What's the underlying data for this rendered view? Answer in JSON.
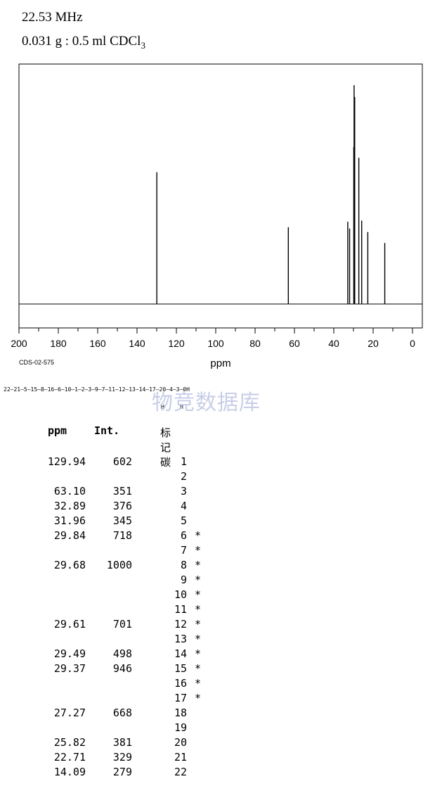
{
  "header": {
    "frequency": "22.53 MHz",
    "sample_main": "0.031 g : 0.5 ml CDCl",
    "sample_sub": "3"
  },
  "spectrum_code": "CDS-02-575",
  "watermark": "物竞数据库",
  "structure_chain": "22—21—5—15—8—16—6—10—1—2—3—9—7—11—12—13—14—17—20—4—3—0H",
  "structure_h_marks": [
    "H",
    "H"
  ],
  "table": {
    "headers": [
      "ppm",
      "Int.",
      "标记碳"
    ],
    "rows": [
      {
        "ppm": "129.94",
        "int": "602",
        "carbons": [
          "1",
          "2"
        ],
        "star": false
      },
      {
        "ppm": "63.10",
        "int": "351",
        "carbons": [
          "3"
        ],
        "star": false
      },
      {
        "ppm": "32.89",
        "int": "376",
        "carbons": [
          "4"
        ],
        "star": false
      },
      {
        "ppm": "31.96",
        "int": "345",
        "carbons": [
          "5"
        ],
        "star": false
      },
      {
        "ppm": "29.84",
        "int": "718",
        "carbons": [
          "6",
          "7"
        ],
        "star": true
      },
      {
        "ppm": "29.68",
        "int": "1000",
        "carbons": [
          "8",
          "9",
          "10",
          "11"
        ],
        "star": true
      },
      {
        "ppm": "29.61",
        "int": "701",
        "carbons": [
          "12",
          "13"
        ],
        "star": true
      },
      {
        "ppm": "29.49",
        "int": "498",
        "carbons": [
          "14"
        ],
        "star": true
      },
      {
        "ppm": "29.37",
        "int": "946",
        "carbons": [
          "15",
          "16",
          "17"
        ],
        "star": true
      },
      {
        "ppm": "27.27",
        "int": "668",
        "carbons": [
          "18",
          "19"
        ],
        "star": false
      },
      {
        "ppm": "25.82",
        "int": "381",
        "carbons": [
          "20"
        ],
        "star": false
      },
      {
        "ppm": "22.71",
        "int": "329",
        "carbons": [
          "21"
        ],
        "star": false
      },
      {
        "ppm": "14.09",
        "int": "279",
        "carbons": [
          "22"
        ],
        "star": false
      }
    ]
  },
  "chart_data": {
    "type": "line",
    "title": "",
    "xlabel": "ppm",
    "ylabel": "",
    "xlim": [
      200,
      0
    ],
    "ylim": [
      0,
      1000
    ],
    "x_ticks": [
      200,
      180,
      160,
      140,
      120,
      100,
      80,
      60,
      40,
      20,
      0
    ],
    "series": [
      {
        "peaks": [
          {
            "ppm": 129.94,
            "intensity": 602
          },
          {
            "ppm": 63.1,
            "intensity": 351
          },
          {
            "ppm": 32.89,
            "intensity": 376
          },
          {
            "ppm": 31.96,
            "intensity": 345
          },
          {
            "ppm": 29.84,
            "intensity": 718
          },
          {
            "ppm": 29.68,
            "intensity": 1000
          },
          {
            "ppm": 29.61,
            "intensity": 701
          },
          {
            "ppm": 29.49,
            "intensity": 498
          },
          {
            "ppm": 29.37,
            "intensity": 946
          },
          {
            "ppm": 27.27,
            "intensity": 668
          },
          {
            "ppm": 25.82,
            "intensity": 381
          },
          {
            "ppm": 22.71,
            "intensity": 329
          },
          {
            "ppm": 14.09,
            "intensity": 279
          }
        ]
      }
    ]
  }
}
